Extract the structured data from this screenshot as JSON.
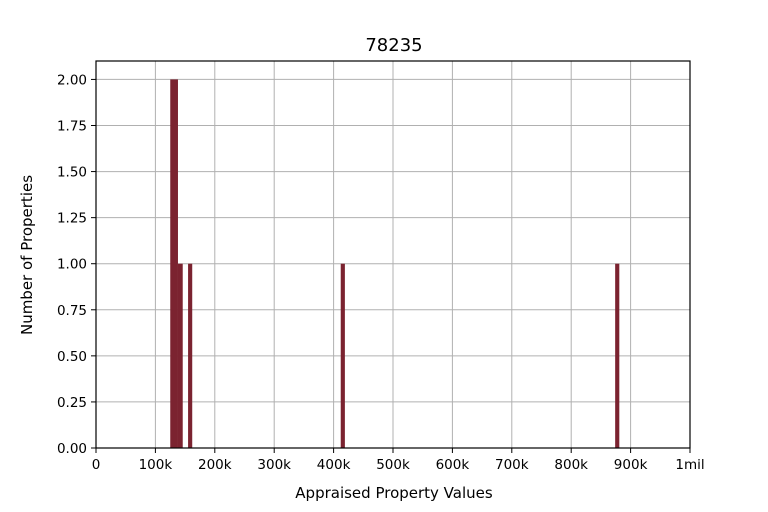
{
  "chart_data": {
    "type": "bar",
    "title": "78235",
    "xlabel": "Appraised Property Values",
    "ylabel": "Number of Properties",
    "xlim": [
      0,
      1000000
    ],
    "ylim": [
      0,
      2.1
    ],
    "grid": true,
    "bar_color": "#7b2330",
    "x_ticks": [
      {
        "value": 0,
        "label": "0"
      },
      {
        "value": 100000,
        "label": "100k"
      },
      {
        "value": 200000,
        "label": "200k"
      },
      {
        "value": 300000,
        "label": "300k"
      },
      {
        "value": 400000,
        "label": "400k"
      },
      {
        "value": 500000,
        "label": "500k"
      },
      {
        "value": 600000,
        "label": "600k"
      },
      {
        "value": 700000,
        "label": "700k"
      },
      {
        "value": 800000,
        "label": "800k"
      },
      {
        "value": 900000,
        "label": "900k"
      },
      {
        "value": 1000000,
        "label": "1mil"
      }
    ],
    "y_ticks": [
      {
        "value": 0.0,
        "label": "0.00"
      },
      {
        "value": 0.25,
        "label": "0.25"
      },
      {
        "value": 0.5,
        "label": "0.50"
      },
      {
        "value": 0.75,
        "label": "0.75"
      },
      {
        "value": 1.0,
        "label": "1.00"
      },
      {
        "value": 1.25,
        "label": "1.25"
      },
      {
        "value": 1.5,
        "label": "1.50"
      },
      {
        "value": 1.75,
        "label": "1.75"
      },
      {
        "value": 2.0,
        "label": "2.00"
      }
    ],
    "bins": [
      {
        "x0": 125000,
        "x1": 138000,
        "count": 2
      },
      {
        "x0": 138000,
        "x1": 146000,
        "count": 1
      },
      {
        "x0": 155000,
        "x1": 162000,
        "count": 1
      },
      {
        "x0": 412000,
        "x1": 419000,
        "count": 1
      },
      {
        "x0": 874000,
        "x1": 881000,
        "count": 1
      }
    ]
  }
}
